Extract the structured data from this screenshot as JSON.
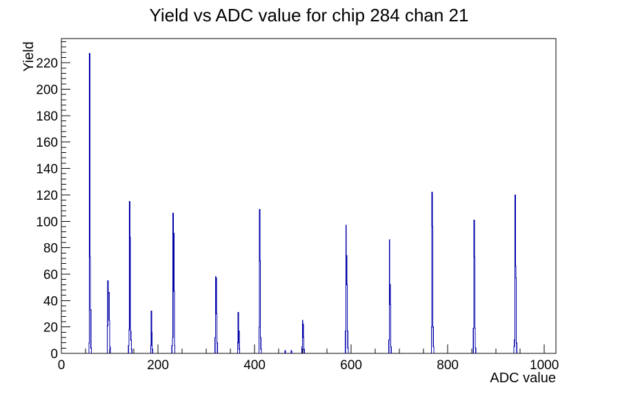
{
  "chart_data": {
    "type": "bar",
    "style": "histogram-outline",
    "title": "Yield vs ADC value for chip 284 chan 21",
    "xlabel": "ADC value",
    "ylabel": "Yield",
    "xlim": [
      0,
      1024
    ],
    "ylim": [
      0,
      238.35
    ],
    "grid": false,
    "legend": "none",
    "x_major_ticks": [
      0,
      200,
      400,
      600,
      800,
      1000
    ],
    "x_minor_step": 50,
    "y_major_ticks": [
      0,
      20,
      40,
      60,
      80,
      100,
      120,
      140,
      160,
      180,
      200,
      220
    ],
    "y_minor_step": 4,
    "line_color": "#0000a8",
    "axis_color": "#000000",
    "bins": [
      [
        57,
        8
      ],
      [
        58,
        227
      ],
      [
        59,
        73
      ],
      [
        60,
        33
      ],
      [
        61,
        4
      ],
      [
        95,
        21
      ],
      [
        96,
        55
      ],
      [
        97,
        46
      ],
      [
        98,
        46
      ],
      [
        99,
        25
      ],
      [
        100,
        5
      ],
      [
        139,
        6
      ],
      [
        140,
        18
      ],
      [
        141,
        115
      ],
      [
        142,
        88
      ],
      [
        143,
        17
      ],
      [
        144,
        10
      ],
      [
        145,
        3
      ],
      [
        185,
        6
      ],
      [
        186,
        32
      ],
      [
        187,
        16
      ],
      [
        188,
        3
      ],
      [
        229,
        6
      ],
      [
        230,
        12
      ],
      [
        231,
        106
      ],
      [
        232,
        91
      ],
      [
        233,
        47
      ],
      [
        234,
        6
      ],
      [
        318,
        12
      ],
      [
        319,
        58
      ],
      [
        320,
        57
      ],
      [
        321,
        30
      ],
      [
        322,
        8
      ],
      [
        365,
        8
      ],
      [
        366,
        31
      ],
      [
        367,
        17
      ],
      [
        368,
        3
      ],
      [
        409,
        20
      ],
      [
        410,
        109
      ],
      [
        411,
        70
      ],
      [
        412,
        12
      ],
      [
        413,
        3
      ],
      [
        463,
        2
      ],
      [
        476,
        2
      ],
      [
        498,
        5
      ],
      [
        499,
        25
      ],
      [
        500,
        22
      ],
      [
        501,
        12
      ],
      [
        502,
        3
      ],
      [
        588,
        17
      ],
      [
        589,
        97
      ],
      [
        590,
        74
      ],
      [
        591,
        52
      ],
      [
        592,
        17
      ],
      [
        593,
        4
      ],
      [
        678,
        10
      ],
      [
        679,
        86
      ],
      [
        680,
        52
      ],
      [
        681,
        37
      ],
      [
        682,
        5
      ],
      [
        766,
        20
      ],
      [
        767,
        122
      ],
      [
        768,
        96
      ],
      [
        769,
        20
      ],
      [
        770,
        5
      ],
      [
        853,
        19
      ],
      [
        854,
        101
      ],
      [
        855,
        73
      ],
      [
        856,
        19
      ],
      [
        857,
        4
      ],
      [
        937,
        5
      ],
      [
        938,
        10
      ],
      [
        939,
        120
      ],
      [
        940,
        66
      ],
      [
        941,
        57
      ],
      [
        942,
        8
      ]
    ]
  }
}
